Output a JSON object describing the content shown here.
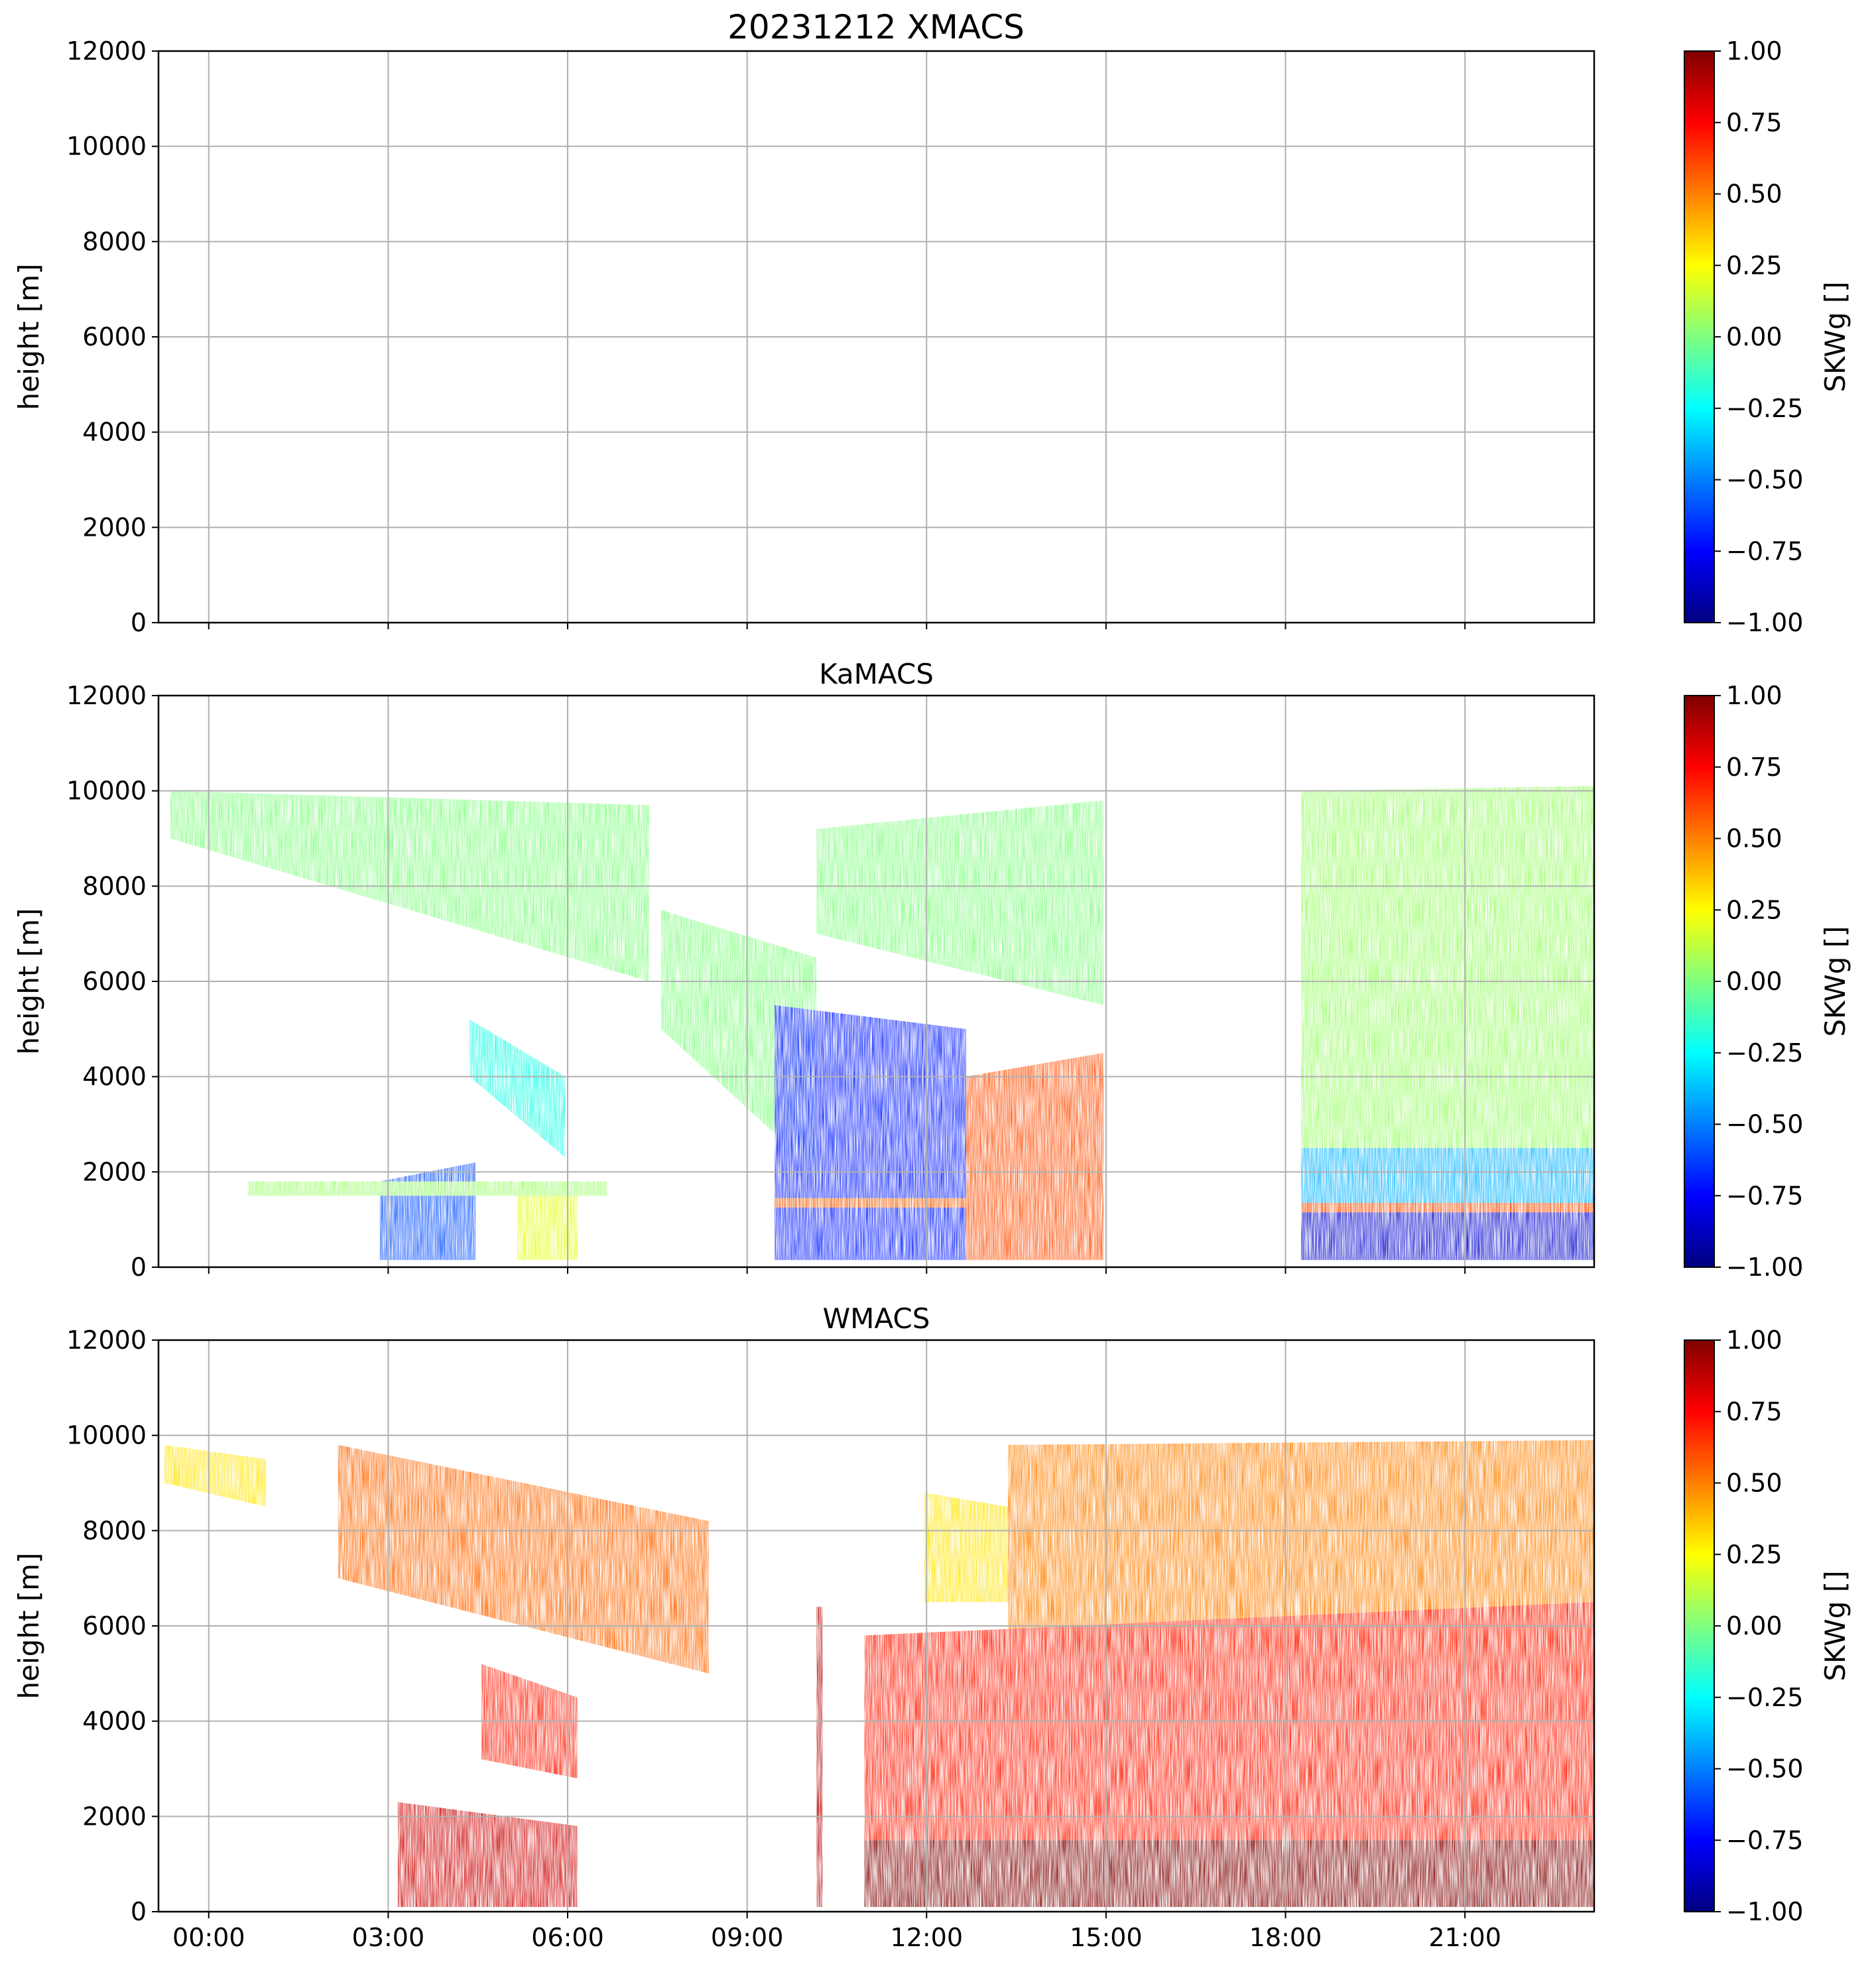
{
  "figure": {
    "suptitle": "20231212 XMACS"
  },
  "colorbar": {
    "label": "SKWg []",
    "ticks": [
      "1.00",
      "0.75",
      "0.50",
      "0.25",
      "0.00",
      "−0.25",
      "−0.50",
      "−0.75",
      "−1.00"
    ],
    "range": [
      -1,
      1
    ],
    "colormap": "jet",
    "colormap_stops": [
      "#00007f",
      "#0000ff",
      "#007fff",
      "#00ffff",
      "#7fff7f",
      "#ffff00",
      "#ff7f00",
      "#ff0000",
      "#7f0000"
    ]
  },
  "chart_data": [
    {
      "type": "heatmap",
      "title": "",
      "ylabel": "height [m]",
      "ylim": [
        0,
        12000
      ],
      "yticks": [
        "0",
        "2000",
        "4000",
        "6000",
        "8000",
        "10000",
        "12000"
      ],
      "xlim": [
        "00:00",
        "24:00"
      ],
      "xticks": [
        "00:00",
        "03:00",
        "06:00",
        "09:00",
        "12:00",
        "15:00",
        "18:00",
        "21:00"
      ],
      "x_ticklabels_shown": false,
      "grid": true,
      "colorbar_label": "SKWg []",
      "regions": []
    },
    {
      "type": "heatmap",
      "title": "KaMACS",
      "ylabel": "height [m]",
      "ylim": [
        0,
        12000
      ],
      "yticks": [
        "0",
        "2000",
        "4000",
        "6000",
        "8000",
        "10000",
        "12000"
      ],
      "xlim": [
        "00:00",
        "24:00"
      ],
      "xticks": [
        "00:00",
        "03:00",
        "06:00",
        "09:00",
        "12:00",
        "15:00",
        "18:00",
        "21:00"
      ],
      "x_ticklabels_shown": false,
      "grid": true,
      "colorbar_label": "SKWg []",
      "regions": [
        {
          "t0": 0.2,
          "t1": 8.2,
          "bottom": [
            9000,
            6000
          ],
          "top": [
            10000,
            9700
          ],
          "value": 0.0
        },
        {
          "t0": 8.4,
          "t1": 11.0,
          "bottom": [
            5000,
            2000
          ],
          "top": [
            7500,
            6500
          ],
          "value": 0.0
        },
        {
          "t0": 11.0,
          "t1": 15.8,
          "bottom": [
            7000,
            5500
          ],
          "top": [
            9200,
            9800
          ],
          "value": 0.0
        },
        {
          "t0": 5.2,
          "t1": 6.8,
          "bottom": [
            4000,
            2300
          ],
          "top": [
            5200,
            4000
          ],
          "value": -0.2
        },
        {
          "t0": 3.7,
          "t1": 5.3,
          "bottom": [
            150,
            150
          ],
          "top": [
            1800,
            2200
          ],
          "value": -0.6
        },
        {
          "t0": 6.0,
          "t1": 7.0,
          "bottom": [
            150,
            150
          ],
          "top": [
            1800,
            1500
          ],
          "value": 0.2
        },
        {
          "t0": 1.5,
          "t1": 7.5,
          "bottom": [
            1500,
            1500
          ],
          "top": [
            1800,
            1800
          ],
          "value": 0.05
        },
        {
          "t0": 10.3,
          "t1": 13.5,
          "bottom": [
            150,
            150
          ],
          "top": [
            5500,
            5000
          ],
          "value": -0.7
        },
        {
          "t0": 10.3,
          "t1": 13.5,
          "bottom": [
            1250,
            1250
          ],
          "top": [
            1450,
            1450
          ],
          "value": 0.55
        },
        {
          "t0": 13.5,
          "t1": 15.8,
          "bottom": [
            150,
            150
          ],
          "top": [
            4000,
            4500
          ],
          "value": 0.6
        },
        {
          "t0": 19.1,
          "t1": 24.0,
          "bottom": [
            2500,
            2500
          ],
          "top": [
            10000,
            10100
          ],
          "value": 0.05
        },
        {
          "t0": 19.1,
          "t1": 24.0,
          "bottom": [
            1300,
            1300
          ],
          "top": [
            2500,
            2500
          ],
          "value": -0.4
        },
        {
          "t0": 19.1,
          "t1": 24.0,
          "bottom": [
            1150,
            1150
          ],
          "top": [
            1350,
            1350
          ],
          "value": 0.6
        },
        {
          "t0": 19.1,
          "t1": 24.0,
          "bottom": [
            150,
            150
          ],
          "top": [
            1150,
            1150
          ],
          "value": -0.85
        }
      ]
    },
    {
      "type": "heatmap",
      "title": "WMACS",
      "ylabel": "height [m]",
      "ylim": [
        0,
        12000
      ],
      "yticks": [
        "0",
        "2000",
        "4000",
        "6000",
        "8000",
        "10000",
        "12000"
      ],
      "xlim": [
        "00:00",
        "24:00"
      ],
      "xticks": [
        "00:00",
        "03:00",
        "06:00",
        "09:00",
        "12:00",
        "15:00",
        "18:00",
        "21:00"
      ],
      "x_ticklabels_shown": true,
      "grid": true,
      "colorbar_label": "SKWg []",
      "regions": [
        {
          "t0": 0.1,
          "t1": 1.8,
          "bottom": [
            9000,
            8500
          ],
          "top": [
            9800,
            9500
          ],
          "value": 0.3
        },
        {
          "t0": 3.0,
          "t1": 9.2,
          "bottom": [
            7000,
            5000
          ],
          "top": [
            9800,
            8200
          ],
          "value": 0.55
        },
        {
          "t0": 5.4,
          "t1": 7.0,
          "bottom": [
            3200,
            2800
          ],
          "top": [
            5200,
            4500
          ],
          "value": 0.7
        },
        {
          "t0": 4.0,
          "t1": 7.0,
          "bottom": [
            100,
            100
          ],
          "top": [
            2300,
            1800
          ],
          "value": 0.85
        },
        {
          "t0": 11.0,
          "t1": 11.1,
          "bottom": [
            100,
            100
          ],
          "top": [
            6400,
            6400
          ],
          "value": 0.9
        },
        {
          "t0": 12.8,
          "t1": 14.2,
          "bottom": [
            6500,
            6500
          ],
          "top": [
            8800,
            8500
          ],
          "value": 0.3
        },
        {
          "t0": 14.2,
          "t1": 24.0,
          "bottom": [
            5500,
            5000
          ],
          "top": [
            9800,
            9900
          ],
          "value": 0.5
        },
        {
          "t0": 11.8,
          "t1": 24.0,
          "bottom": [
            1500,
            1500
          ],
          "top": [
            5800,
            6500
          ],
          "value": 0.7
        },
        {
          "t0": 11.8,
          "t1": 24.0,
          "bottom": [
            100,
            100
          ],
          "top": [
            1500,
            1500
          ],
          "value": 1.0
        }
      ]
    }
  ]
}
